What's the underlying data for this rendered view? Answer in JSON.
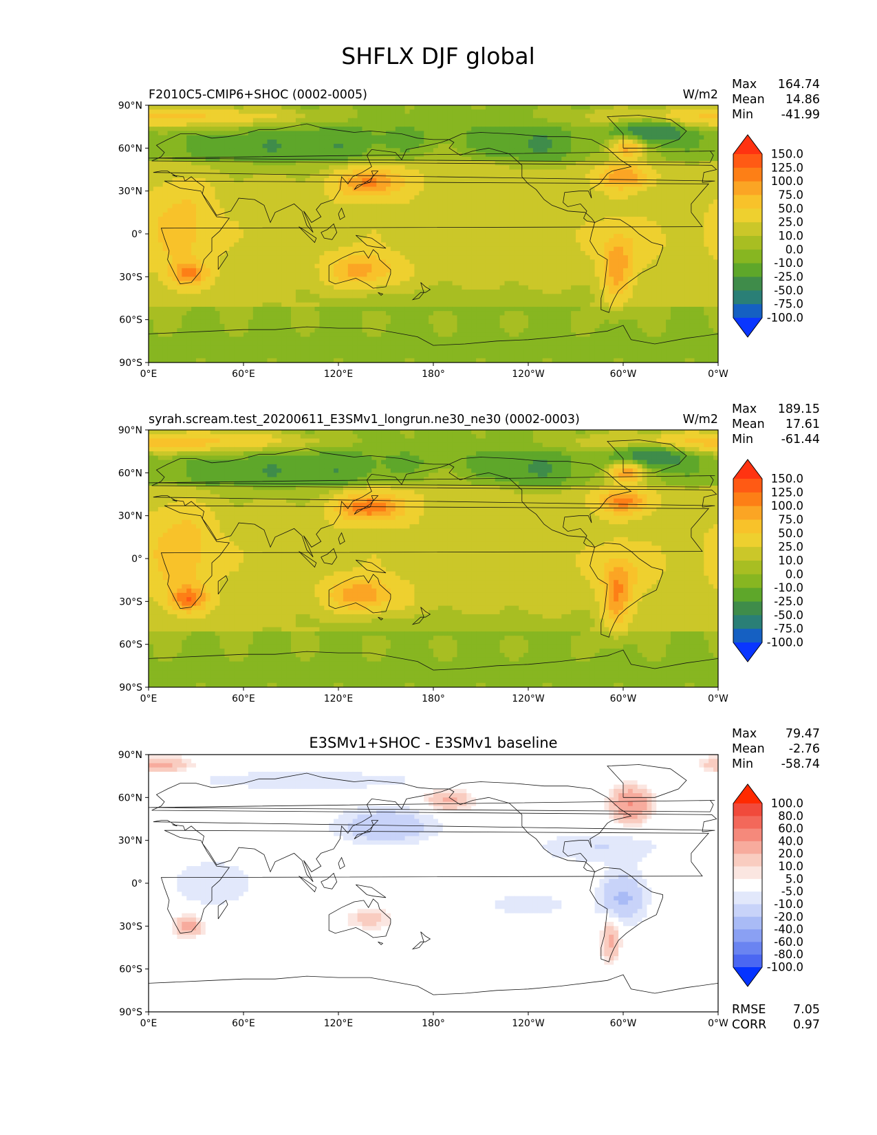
{
  "figure_title": "SHFLX DJF global",
  "chart_data": [
    {
      "type": "heatmap",
      "map": "global",
      "title_left": "F2010C5-CMIP6+SHOC (0002-0005)",
      "title_center": "",
      "units": "W/m2",
      "stats": [
        {
          "label": "Max",
          "value": "164.74"
        },
        {
          "label": "Mean",
          "value": "14.86"
        },
        {
          "label": "Min",
          "value": "-41.99"
        }
      ],
      "extra_stats": [],
      "x_ticks": [
        "0°E",
        "60°E",
        "120°E",
        "180°",
        "120°W",
        "60°W",
        "0°W"
      ],
      "y_ticks": [
        "90°N",
        "60°N",
        "30°N",
        "0°",
        "30°S",
        "60°S",
        "90°S"
      ],
      "xlim": [
        0,
        360
      ],
      "ylim": [
        -90,
        90
      ],
      "colorbar": {
        "levels": [
          "150.0",
          "125.0",
          "100.0",
          "75.0",
          "50.0",
          "25.0",
          "10.0",
          "0.0",
          "-10.0",
          "-25.0",
          "-50.0",
          "-75.0",
          "-100.0"
        ],
        "colors": [
          "#ff3311",
          "#ff5a14",
          "#fd7f16",
          "#fba524",
          "#f8c22a",
          "#eed02f",
          "#cbc729",
          "#a8be22",
          "#87b621",
          "#5ea72a",
          "#3f8c4a",
          "#2a7f76",
          "#1560c2",
          "#0a36ff"
        ]
      },
      "field": "mean",
      "scale": 1.0
    },
    {
      "type": "heatmap",
      "map": "global",
      "title_left": "syrah.scream.test_20200611_E3SMv1_longrun.ne30_ne30 (0002-0003)",
      "title_center": "",
      "units": "W/m2",
      "stats": [
        {
          "label": "Max",
          "value": "189.15"
        },
        {
          "label": "Mean",
          "value": "17.61"
        },
        {
          "label": "Min",
          "value": "-61.44"
        }
      ],
      "extra_stats": [],
      "x_ticks": [
        "0°E",
        "60°E",
        "120°E",
        "180°",
        "120°W",
        "60°W",
        "0°W"
      ],
      "y_ticks": [
        "90°N",
        "60°N",
        "30°N",
        "0°",
        "30°S",
        "60°S",
        "90°S"
      ],
      "xlim": [
        0,
        360
      ],
      "ylim": [
        -90,
        90
      ],
      "colorbar": {
        "levels": [
          "150.0",
          "125.0",
          "100.0",
          "75.0",
          "50.0",
          "25.0",
          "10.0",
          "0.0",
          "-10.0",
          "-25.0",
          "-50.0",
          "-75.0",
          "-100.0"
        ],
        "colors": [
          "#ff3311",
          "#ff5a14",
          "#fd7f16",
          "#fba524",
          "#f8c22a",
          "#eed02f",
          "#cbc729",
          "#a8be22",
          "#87b621",
          "#5ea72a",
          "#3f8c4a",
          "#2a7f76",
          "#1560c2",
          "#0a36ff"
        ]
      },
      "field": "mean",
      "scale": 1.15
    },
    {
      "type": "heatmap",
      "map": "global",
      "title_left": "",
      "title_center": "E3SMv1+SHOC - E3SMv1 baseline",
      "units": "",
      "stats": [
        {
          "label": "Max",
          "value": "79.47"
        },
        {
          "label": "Mean",
          "value": "-2.76"
        },
        {
          "label": "Min",
          "value": "-58.74"
        }
      ],
      "extra_stats": [
        {
          "label": "RMSE",
          "value": "7.05"
        },
        {
          "label": "CORR",
          "value": "0.97"
        }
      ],
      "x_ticks": [
        "0°E",
        "60°E",
        "120°E",
        "180°",
        "120°W",
        "60°W",
        "0°W"
      ],
      "y_ticks": [
        "90°N",
        "60°N",
        "30°N",
        "0°",
        "30°S",
        "60°S",
        "90°S"
      ],
      "xlim": [
        0,
        360
      ],
      "ylim": [
        -90,
        90
      ],
      "colorbar": {
        "levels": [
          "100.0",
          "80.0",
          "60.0",
          "40.0",
          "20.0",
          "10.0",
          "5.0",
          "-5.0",
          "-10.0",
          "-20.0",
          "-40.0",
          "-60.0",
          "-80.0",
          "-100.0"
        ],
        "colors": [
          "#ff2a00",
          "#f14a3b",
          "#f3685a",
          "#f5897b",
          "#f7ab9d",
          "#f9ccc0",
          "#fbe6e1",
          "#ffffff",
          "#e2e8fb",
          "#c8d3f9",
          "#a9bbf6",
          "#8aa0f3",
          "#6a84f1",
          "#4b67f2",
          "#0533ff"
        ]
      },
      "field": "diff",
      "scale": 1.0
    }
  ]
}
